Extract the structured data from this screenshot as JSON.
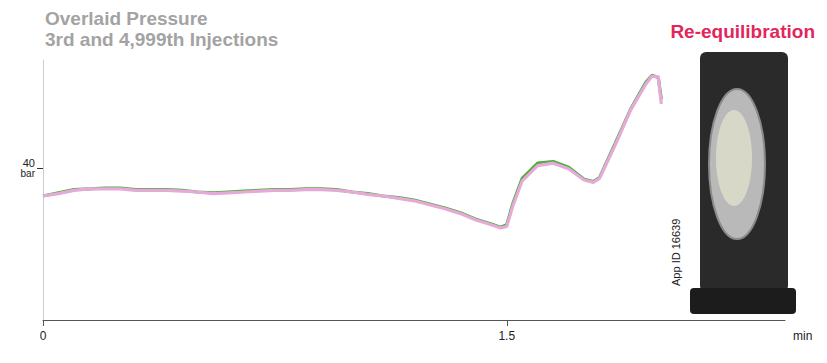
{
  "chart_data": {
    "type": "line",
    "title": "Overlaid Pressure",
    "subtitle": "3rd and 4,999th Injections",
    "annotations": [
      "Re-equilibration",
      "App ID 16639"
    ],
    "x": [
      0,
      0.05,
      0.1,
      0.15,
      0.2,
      0.25,
      0.3,
      0.35,
      0.4,
      0.45,
      0.5,
      0.55,
      0.6,
      0.65,
      0.7,
      0.75,
      0.8,
      0.85,
      0.9,
      0.95,
      1.0,
      1.05,
      1.1,
      1.15,
      1.2,
      1.25,
      1.3,
      1.35,
      1.4,
      1.45,
      1.48,
      1.5,
      1.52,
      1.55,
      1.6,
      1.65,
      1.7,
      1.75,
      1.78,
      1.8,
      1.85,
      1.9,
      1.95,
      1.97,
      1.99,
      2.0
    ],
    "series": [
      {
        "color": "#4cae3c",
        "values": [
          36.5,
          36.9,
          37.3,
          37.4,
          37.5,
          37.5,
          37.3,
          37.3,
          37.3,
          37.2,
          37.0,
          36.9,
          37.0,
          37.1,
          37.2,
          37.3,
          37.3,
          37.4,
          37.4,
          37.3,
          37.0,
          36.8,
          36.5,
          36.3,
          36.0,
          35.5,
          35.0,
          34.4,
          33.6,
          33.0,
          32.6,
          32.9,
          35.6,
          38.7,
          40.6,
          40.8,
          40.1,
          38.6,
          38.3,
          38.8,
          43.0,
          47.3,
          50.7,
          51.6,
          51.3,
          48.6
        ]
      },
      {
        "color": "#e6a9d9",
        "values": [
          36.5,
          36.8,
          37.2,
          37.4,
          37.4,
          37.4,
          37.2,
          37.2,
          37.2,
          37.1,
          37.0,
          36.8,
          36.9,
          37.0,
          37.1,
          37.2,
          37.2,
          37.3,
          37.3,
          37.2,
          37.0,
          36.7,
          36.5,
          36.2,
          35.9,
          35.4,
          34.9,
          34.3,
          33.5,
          32.9,
          32.5,
          32.7,
          35.3,
          38.4,
          40.3,
          40.6,
          39.9,
          38.5,
          38.2,
          38.7,
          42.8,
          47.2,
          50.5,
          51.5,
          51.4,
          48.0
        ]
      }
    ],
    "xlabel": "min",
    "ylabel": "bar",
    "xlim": [
      0,
      2.4
    ],
    "xticks": [
      0,
      1.5
    ],
    "ylim": [
      21,
      53.5
    ],
    "yticks": [
      40
    ],
    "grid": false
  }
}
